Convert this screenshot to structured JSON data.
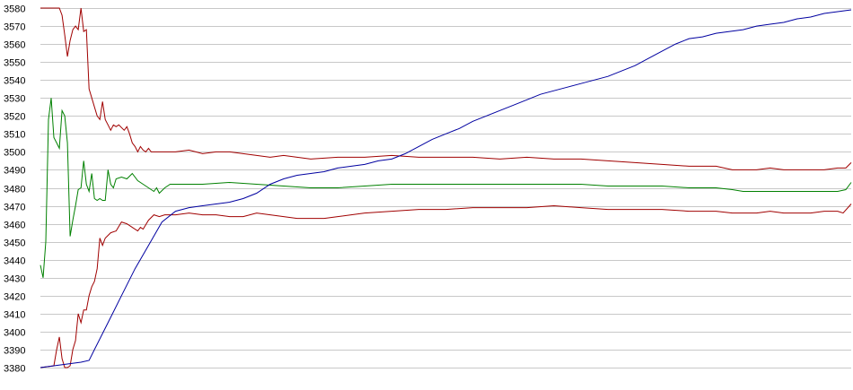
{
  "chart_data": {
    "type": "line",
    "xlabel": "",
    "ylabel": "",
    "grid": true,
    "legend": "none",
    "ylim": [
      3380,
      3580
    ],
    "xlim": [
      0,
      300
    ],
    "yticks": [
      3380,
      3390,
      3400,
      3410,
      3420,
      3430,
      3440,
      3450,
      3460,
      3470,
      3480,
      3490,
      3500,
      3510,
      3520,
      3530,
      3540,
      3550,
      3560,
      3570,
      3580
    ],
    "series": [
      {
        "color": "#a00000",
        "points": [
          [
            0,
            3580
          ],
          [
            7,
            3580
          ],
          [
            8,
            3576
          ],
          [
            9,
            3565
          ],
          [
            10,
            3553
          ],
          [
            11,
            3562
          ],
          [
            12,
            3568
          ],
          [
            13,
            3570
          ],
          [
            14,
            3568
          ],
          [
            15,
            3580
          ],
          [
            16,
            3567
          ],
          [
            17,
            3568
          ],
          [
            18,
            3535
          ],
          [
            20,
            3525
          ],
          [
            21,
            3520
          ],
          [
            22,
            3518
          ],
          [
            23,
            3528
          ],
          [
            24,
            3518
          ],
          [
            25,
            3515
          ],
          [
            26,
            3512
          ],
          [
            27,
            3515
          ],
          [
            28,
            3514
          ],
          [
            29,
            3515
          ],
          [
            31,
            3512
          ],
          [
            32,
            3514
          ],
          [
            33,
            3510
          ],
          [
            34,
            3505
          ],
          [
            35,
            3503
          ],
          [
            36,
            3500
          ],
          [
            37,
            3503
          ],
          [
            38,
            3501
          ],
          [
            39,
            3500
          ],
          [
            40,
            3502
          ],
          [
            41,
            3500
          ],
          [
            42,
            3500
          ],
          [
            43,
            3500
          ],
          [
            50,
            3500
          ],
          [
            55,
            3501
          ],
          [
            60,
            3499
          ],
          [
            65,
            3500
          ],
          [
            70,
            3500
          ],
          [
            75,
            3499
          ],
          [
            80,
            3498
          ],
          [
            85,
            3497
          ],
          [
            90,
            3498
          ],
          [
            95,
            3497
          ],
          [
            100,
            3496
          ],
          [
            110,
            3497
          ],
          [
            120,
            3497
          ],
          [
            130,
            3498
          ],
          [
            140,
            3497
          ],
          [
            150,
            3497
          ],
          [
            160,
            3497
          ],
          [
            170,
            3496
          ],
          [
            180,
            3497
          ],
          [
            190,
            3496
          ],
          [
            200,
            3496
          ],
          [
            210,
            3495
          ],
          [
            220,
            3494
          ],
          [
            230,
            3493
          ],
          [
            240,
            3492
          ],
          [
            250,
            3492
          ],
          [
            256,
            3490
          ],
          [
            260,
            3490
          ],
          [
            265,
            3490
          ],
          [
            270,
            3491
          ],
          [
            275,
            3490
          ],
          [
            280,
            3490
          ],
          [
            285,
            3490
          ],
          [
            290,
            3490
          ],
          [
            295,
            3491
          ],
          [
            298,
            3491
          ],
          [
            300,
            3494
          ]
        ]
      },
      {
        "color": "#a00000",
        "points": [
          [
            0,
            3380
          ],
          [
            5,
            3381
          ],
          [
            6,
            3390
          ],
          [
            7,
            3397
          ],
          [
            8,
            3385
          ],
          [
            9,
            3380
          ],
          [
            10,
            3380
          ],
          [
            11,
            3381
          ],
          [
            12,
            3390
          ],
          [
            13,
            3395
          ],
          [
            14,
            3410
          ],
          [
            15,
            3405
          ],
          [
            16,
            3412
          ],
          [
            17,
            3412
          ],
          [
            18,
            3420
          ],
          [
            19,
            3425
          ],
          [
            20,
            3428
          ],
          [
            21,
            3435
          ],
          [
            22,
            3452
          ],
          [
            23,
            3448
          ],
          [
            24,
            3452
          ],
          [
            26,
            3455
          ],
          [
            28,
            3456
          ],
          [
            30,
            3461
          ],
          [
            32,
            3460
          ],
          [
            34,
            3458
          ],
          [
            36,
            3456
          ],
          [
            37,
            3458
          ],
          [
            38,
            3457
          ],
          [
            40,
            3462
          ],
          [
            42,
            3465
          ],
          [
            44,
            3464
          ],
          [
            46,
            3465
          ],
          [
            50,
            3465
          ],
          [
            55,
            3466
          ],
          [
            60,
            3465
          ],
          [
            65,
            3465
          ],
          [
            70,
            3464
          ],
          [
            75,
            3464
          ],
          [
            80,
            3466
          ],
          [
            85,
            3465
          ],
          [
            90,
            3464
          ],
          [
            95,
            3463
          ],
          [
            100,
            3463
          ],
          [
            105,
            3463
          ],
          [
            110,
            3464
          ],
          [
            115,
            3465
          ],
          [
            120,
            3466
          ],
          [
            130,
            3467
          ],
          [
            140,
            3468
          ],
          [
            150,
            3468
          ],
          [
            160,
            3469
          ],
          [
            170,
            3469
          ],
          [
            180,
            3469
          ],
          [
            190,
            3470
          ],
          [
            200,
            3469
          ],
          [
            210,
            3468
          ],
          [
            220,
            3468
          ],
          [
            230,
            3468
          ],
          [
            240,
            3467
          ],
          [
            250,
            3467
          ],
          [
            256,
            3466
          ],
          [
            260,
            3466
          ],
          [
            265,
            3466
          ],
          [
            270,
            3467
          ],
          [
            275,
            3466
          ],
          [
            280,
            3466
          ],
          [
            285,
            3466
          ],
          [
            290,
            3467
          ],
          [
            295,
            3467
          ],
          [
            297,
            3466
          ],
          [
            300,
            3471
          ]
        ]
      },
      {
        "color": "#008000",
        "points": [
          [
            0,
            3437
          ],
          [
            1,
            3430
          ],
          [
            2,
            3450
          ],
          [
            3,
            3518
          ],
          [
            4,
            3530
          ],
          [
            5,
            3508
          ],
          [
            6,
            3505
          ],
          [
            7,
            3502
          ],
          [
            8,
            3523
          ],
          [
            9,
            3520
          ],
          [
            10,
            3505
          ],
          [
            11,
            3453
          ],
          [
            12,
            3462
          ],
          [
            13,
            3470
          ],
          [
            14,
            3479
          ],
          [
            15,
            3480
          ],
          [
            16,
            3495
          ],
          [
            17,
            3482
          ],
          [
            18,
            3478
          ],
          [
            19,
            3488
          ],
          [
            20,
            3474
          ],
          [
            21,
            3473
          ],
          [
            22,
            3474
          ],
          [
            23,
            3473
          ],
          [
            24,
            3473
          ],
          [
            25,
            3490
          ],
          [
            26,
            3482
          ],
          [
            27,
            3480
          ],
          [
            28,
            3485
          ],
          [
            30,
            3486
          ],
          [
            32,
            3485
          ],
          [
            34,
            3488
          ],
          [
            36,
            3484
          ],
          [
            38,
            3482
          ],
          [
            40,
            3480
          ],
          [
            42,
            3478
          ],
          [
            43,
            3480
          ],
          [
            44,
            3477
          ],
          [
            46,
            3480
          ],
          [
            48,
            3482
          ],
          [
            50,
            3482
          ],
          [
            55,
            3482
          ],
          [
            60,
            3482
          ],
          [
            70,
            3483
          ],
          [
            80,
            3482
          ],
          [
            90,
            3481
          ],
          [
            100,
            3480
          ],
          [
            110,
            3480
          ],
          [
            120,
            3481
          ],
          [
            130,
            3482
          ],
          [
            140,
            3482
          ],
          [
            150,
            3482
          ],
          [
            160,
            3482
          ],
          [
            170,
            3482
          ],
          [
            180,
            3482
          ],
          [
            190,
            3482
          ],
          [
            200,
            3482
          ],
          [
            210,
            3481
          ],
          [
            220,
            3481
          ],
          [
            230,
            3481
          ],
          [
            240,
            3480
          ],
          [
            250,
            3480
          ],
          [
            256,
            3479
          ],
          [
            260,
            3478
          ],
          [
            265,
            3478
          ],
          [
            270,
            3478
          ],
          [
            275,
            3478
          ],
          [
            280,
            3478
          ],
          [
            285,
            3478
          ],
          [
            290,
            3478
          ],
          [
            295,
            3478
          ],
          [
            298,
            3479
          ],
          [
            300,
            3483
          ]
        ]
      },
      {
        "color": "#0000a0",
        "points": [
          [
            0,
            3380
          ],
          [
            5,
            3381
          ],
          [
            10,
            3382
          ],
          [
            15,
            3383
          ],
          [
            18,
            3384
          ],
          [
            20,
            3390
          ],
          [
            25,
            3405
          ],
          [
            30,
            3420
          ],
          [
            35,
            3435
          ],
          [
            40,
            3448
          ],
          [
            45,
            3461
          ],
          [
            50,
            3467
          ],
          [
            55,
            3469
          ],
          [
            60,
            3470
          ],
          [
            65,
            3471
          ],
          [
            70,
            3472
          ],
          [
            75,
            3474
          ],
          [
            80,
            3477
          ],
          [
            85,
            3482
          ],
          [
            90,
            3485
          ],
          [
            95,
            3487
          ],
          [
            100,
            3488
          ],
          [
            105,
            3489
          ],
          [
            110,
            3491
          ],
          [
            115,
            3492
          ],
          [
            120,
            3493
          ],
          [
            125,
            3495
          ],
          [
            130,
            3496
          ],
          [
            135,
            3499
          ],
          [
            140,
            3503
          ],
          [
            145,
            3507
          ],
          [
            150,
            3510
          ],
          [
            155,
            3513
          ],
          [
            160,
            3517
          ],
          [
            165,
            3520
          ],
          [
            170,
            3523
          ],
          [
            175,
            3526
          ],
          [
            180,
            3529
          ],
          [
            185,
            3532
          ],
          [
            190,
            3534
          ],
          [
            195,
            3536
          ],
          [
            200,
            3538
          ],
          [
            205,
            3540
          ],
          [
            210,
            3542
          ],
          [
            215,
            3545
          ],
          [
            220,
            3548
          ],
          [
            225,
            3552
          ],
          [
            230,
            3556
          ],
          [
            235,
            3560
          ],
          [
            240,
            3563
          ],
          [
            245,
            3564
          ],
          [
            250,
            3566
          ],
          [
            255,
            3567
          ],
          [
            260,
            3568
          ],
          [
            265,
            3570
          ],
          [
            270,
            3571
          ],
          [
            275,
            3572
          ],
          [
            280,
            3574
          ],
          [
            285,
            3575
          ],
          [
            290,
            3577
          ],
          [
            295,
            3578
          ],
          [
            300,
            3579
          ]
        ]
      }
    ]
  }
}
